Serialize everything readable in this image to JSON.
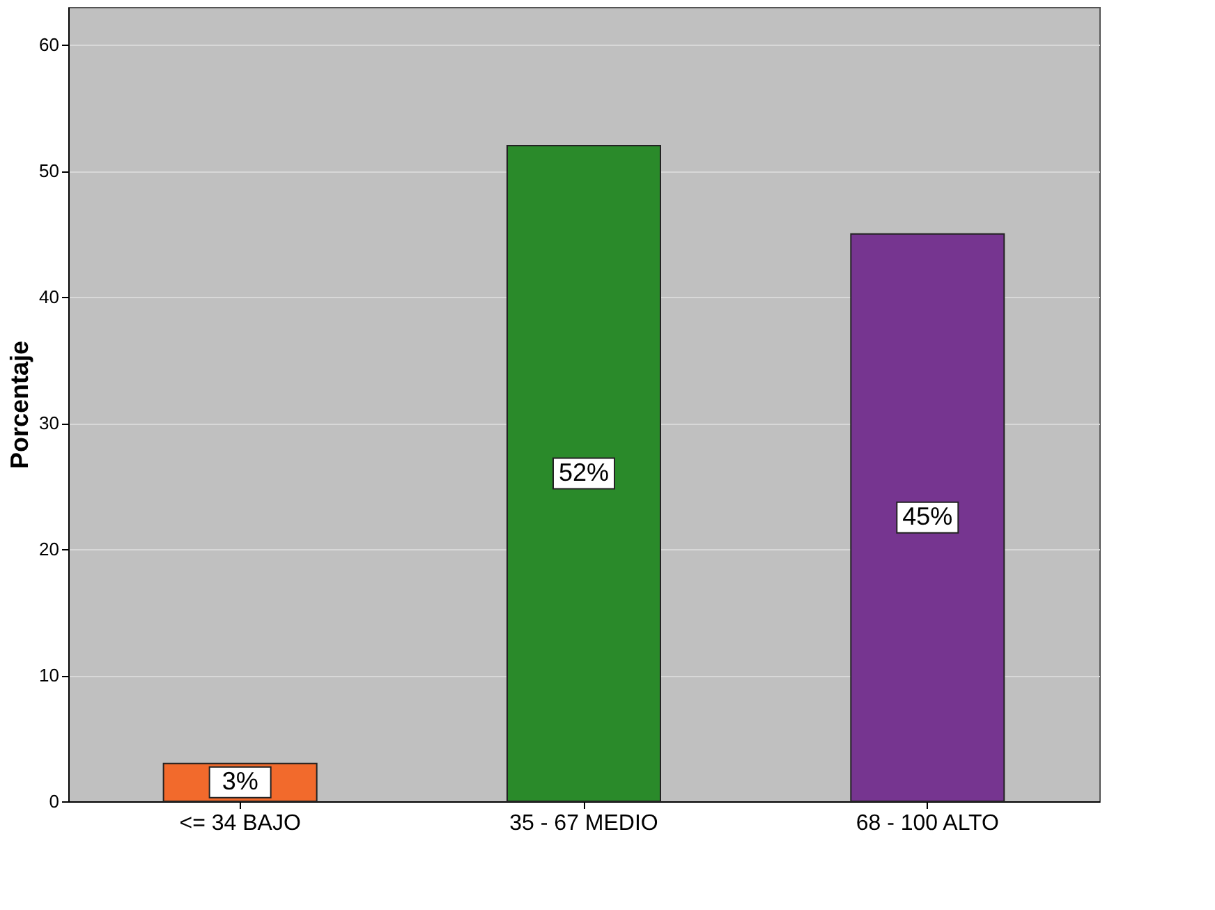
{
  "chart_data": {
    "type": "bar",
    "ylabel": "Porcentaje",
    "categories": [
      "<= 34  BAJO",
      "35 - 67  MEDIO",
      "68 - 100 ALTO"
    ],
    "values": [
      3,
      52,
      45
    ],
    "colors": [
      "#f26a2c",
      "#2a8a2a",
      "#763590"
    ],
    "value_labels": [
      "3%",
      "52%",
      "45%"
    ],
    "ylim": [
      0,
      63
    ],
    "yticks": [
      0,
      10,
      20,
      30,
      40,
      50,
      60
    ],
    "grid": "y"
  }
}
